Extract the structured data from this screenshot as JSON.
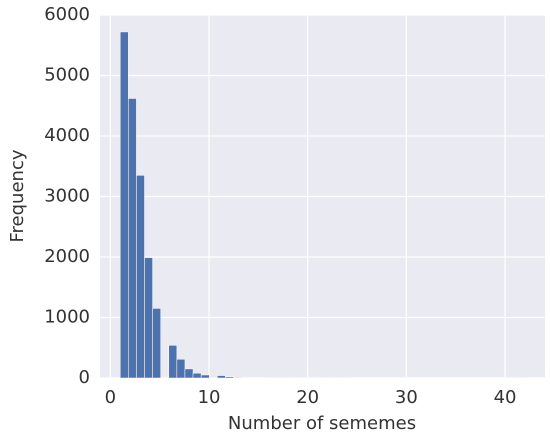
{
  "chart_data": {
    "type": "histogram",
    "x_label": "Number of sememes",
    "y_label": "Frequency",
    "bins": [
      1,
      1.82,
      2.64,
      3.46,
      4.28,
      5.1,
      5.92,
      6.74,
      7.56,
      8.38,
      9.2,
      10.02,
      10.84,
      11.66,
      12.48,
      13.3,
      14.12,
      14.94,
      15.76,
      16.58,
      17.4,
      18.22,
      19.04,
      19.86,
      20.68,
      21.5,
      22.32,
      23.14,
      23.96,
      24.78,
      25.6,
      26.42,
      27.24,
      28.06,
      28.88,
      29.7,
      30.52,
      31.34,
      32.16,
      32.98,
      33.8,
      34.62,
      35.44,
      36.26,
      37.08,
      37.9,
      38.72,
      39.54,
      40.36,
      41.18,
      42
    ],
    "values": [
      5720,
      4620,
      3350,
      1990,
      1150,
      0,
      540,
      310,
      150,
      80,
      50,
      0,
      40,
      20,
      10,
      5,
      0,
      5,
      3,
      2,
      2,
      0,
      2,
      1,
      0,
      1,
      0,
      1,
      0,
      0,
      0,
      0,
      0,
      0,
      0,
      0,
      0,
      0,
      0,
      0,
      0,
      0,
      0,
      0,
      0,
      0,
      0,
      0,
      0,
      1
    ],
    "color": "#4c72b0",
    "xlim": [
      -1.05,
      44.05
    ],
    "xticks": [
      0,
      10,
      20,
      30,
      40
    ],
    "ylim": [
      0,
      6000
    ],
    "yticks": [
      0,
      1000,
      2000,
      3000,
      4000,
      5000,
      6000
    ],
    "grid": true
  }
}
